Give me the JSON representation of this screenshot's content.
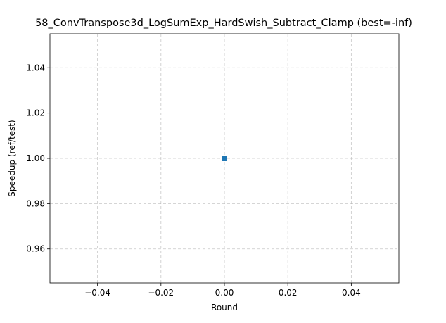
{
  "chart_data": {
    "type": "line",
    "title": "58_ConvTranspose3d_LogSumExp_HardSwish_Subtract_Clamp (best=-inf)",
    "xlabel": "Round",
    "ylabel": "Speedup (ref/test)",
    "xlim": [
      -0.055,
      0.055
    ],
    "ylim": [
      0.945,
      1.055
    ],
    "xticks": [
      -0.04,
      -0.02,
      0.0,
      0.02,
      0.04
    ],
    "xtick_labels": [
      "−0.04",
      "−0.02",
      "0.00",
      "0.02",
      "0.04"
    ],
    "yticks": [
      0.96,
      0.98,
      1.0,
      1.02,
      1.04
    ],
    "ytick_labels": [
      "0.96",
      "0.98",
      "1.00",
      "1.02",
      "1.04"
    ],
    "grid": true,
    "series": [
      {
        "x": [
          0
        ],
        "y": [
          1.0
        ],
        "color": "#1f77b4",
        "marker": "square"
      }
    ]
  }
}
